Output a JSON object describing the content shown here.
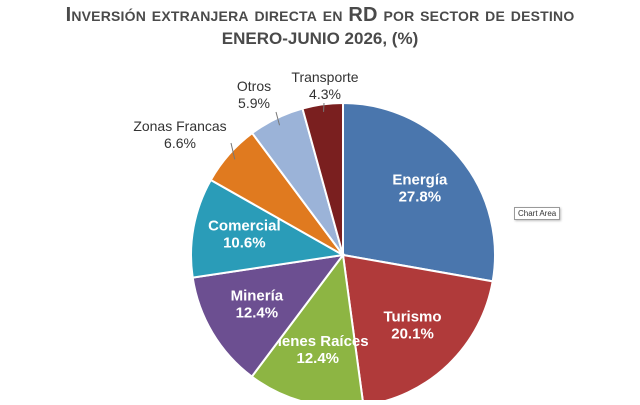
{
  "title": {
    "line1": "Inversión extranjera directa en RD por sector de destino",
    "line2": "enero-junio 2026, (%)"
  },
  "tooltip": "Chart Area",
  "chart_data": {
    "type": "pie",
    "title": "Inversión extranjera directa en RD por sector de destino enero-junio 2026, (%)",
    "slices": [
      {
        "label": "Energía",
        "value": 27.8,
        "display": "27.8%",
        "color": "#4a76ad",
        "label_pos": "inside",
        "text_color": "#ffffff"
      },
      {
        "label": "Turismo",
        "value": 20.1,
        "display": "20.1%",
        "color": "#b03a3a",
        "label_pos": "inside",
        "text_color": "#ffffff"
      },
      {
        "label": "Bienes Raíces",
        "value": 12.4,
        "display": "12.4%",
        "color": "#8db543",
        "label_pos": "inside",
        "text_color": "#ffffff"
      },
      {
        "label": "Minería",
        "value": 12.4,
        "display": "12.4%",
        "color": "#6c4f91",
        "label_pos": "inside",
        "text_color": "#ffffff"
      },
      {
        "label": "Comercial",
        "value": 10.6,
        "display": "10.6%",
        "color": "#2a9cb8",
        "label_pos": "inside",
        "text_color": "#ffffff"
      },
      {
        "label": "Zonas Francas",
        "value": 6.6,
        "display": "6.6%",
        "color": "#e07a1f",
        "label_pos": "outside",
        "text_color": "#333333"
      },
      {
        "label": "Otros",
        "value": 5.9,
        "display": "5.9%",
        "color": "#9bb3d8",
        "label_pos": "outside",
        "text_color": "#333333"
      },
      {
        "label": "Transporte",
        "value": 4.3,
        "display": "4.3%",
        "color": "#7a1f1f",
        "label_pos": "outside",
        "text_color": "#333333"
      }
    ]
  }
}
